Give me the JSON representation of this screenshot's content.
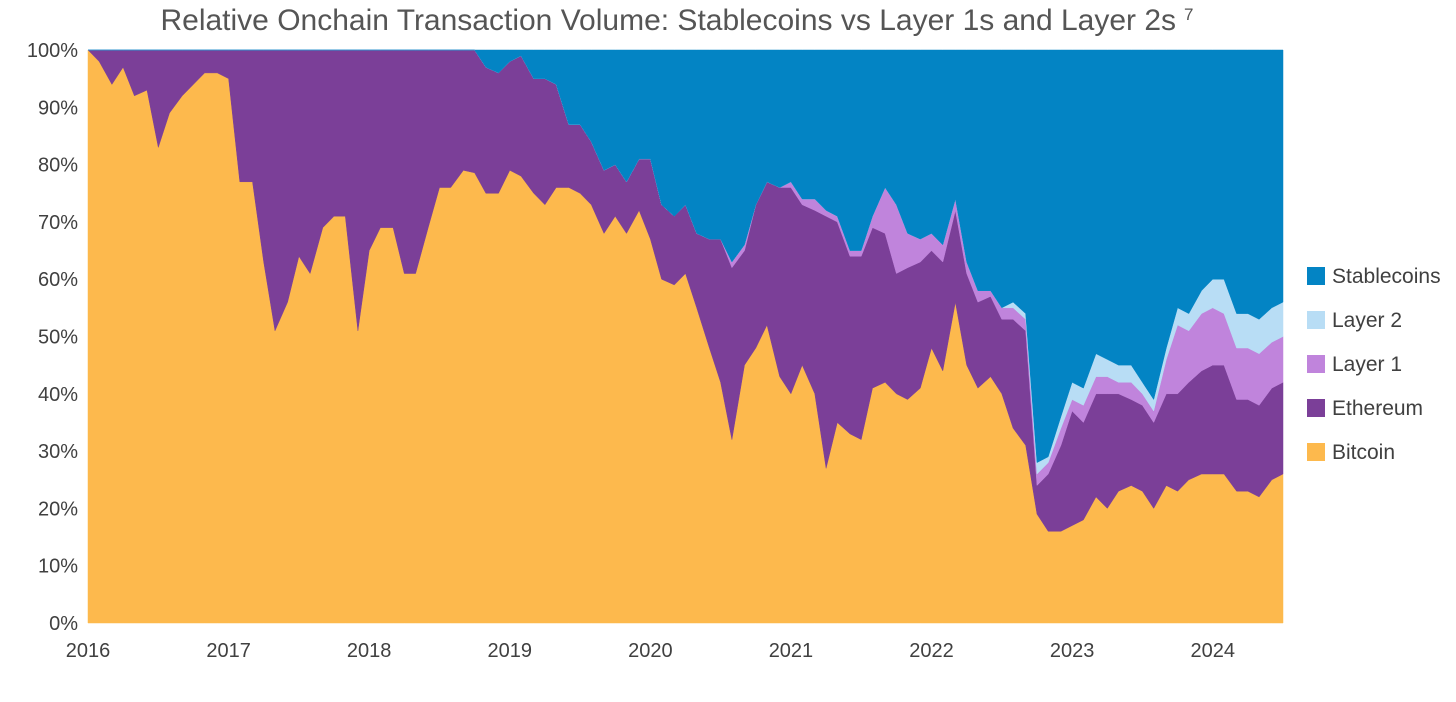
{
  "chart_data": {
    "type": "area",
    "stacking": "percent",
    "title": "Relative Onchain Transaction Volume: Stablecoins vs Layer 1s and Layer 2s",
    "title_superscript": "7",
    "xlabel": "",
    "ylabel": "",
    "x_tick_labels": [
      "2016",
      "2017",
      "2018",
      "2019",
      "2020",
      "2021",
      "2022",
      "2023",
      "2024"
    ],
    "y_tick_labels": [
      "0%",
      "10%",
      "20%",
      "30%",
      "40%",
      "50%",
      "60%",
      "70%",
      "80%",
      "90%",
      "100%"
    ],
    "xlim": [
      2016.0,
      2024.5
    ],
    "ylim": [
      0,
      100
    ],
    "legend_position": "right",
    "grid": false,
    "x": [
      2016.0,
      2016.08,
      2016.17,
      2016.25,
      2016.33,
      2016.42,
      2016.5,
      2016.58,
      2016.67,
      2016.75,
      2016.83,
      2016.92,
      2017.0,
      2017.08,
      2017.17,
      2017.25,
      2017.33,
      2017.42,
      2017.5,
      2017.58,
      2017.67,
      2017.75,
      2017.83,
      2017.92,
      2018.0,
      2018.08,
      2018.17,
      2018.25,
      2018.33,
      2018.42,
      2018.5,
      2018.58,
      2018.67,
      2018.75,
      2018.83,
      2018.92,
      2019.0,
      2019.08,
      2019.17,
      2019.25,
      2019.33,
      2019.42,
      2019.5,
      2019.58,
      2019.67,
      2019.75,
      2019.83,
      2019.92,
      2020.0,
      2020.08,
      2020.17,
      2020.25,
      2020.33,
      2020.42,
      2020.5,
      2020.58,
      2020.67,
      2020.75,
      2020.83,
      2020.92,
      2021.0,
      2021.08,
      2021.17,
      2021.25,
      2021.33,
      2021.42,
      2021.5,
      2021.58,
      2021.67,
      2021.75,
      2021.83,
      2021.92,
      2022.0,
      2022.08,
      2022.17,
      2022.25,
      2022.33,
      2022.42,
      2022.5,
      2022.58,
      2022.67,
      2022.75,
      2022.83,
      2022.92,
      2023.0,
      2023.08,
      2023.17,
      2023.25,
      2023.33,
      2023.42,
      2023.5,
      2023.58,
      2023.67,
      2023.75,
      2023.83,
      2023.92,
      2024.0,
      2024.08,
      2024.17,
      2024.25,
      2024.33,
      2024.42,
      2024.5
    ],
    "series": [
      {
        "name": "Bitcoin",
        "color": "#FDB94D",
        "values": [
          100,
          98,
          94,
          97,
          92,
          93,
          83,
          89,
          92,
          94,
          96,
          96,
          95,
          77,
          77,
          63,
          51,
          56,
          64,
          61,
          69,
          71,
          71,
          51,
          65,
          69,
          69,
          61,
          61,
          69,
          76,
          76,
          79,
          77,
          75,
          75,
          79,
          78,
          75,
          73,
          76,
          76,
          75,
          73,
          68,
          71,
          68,
          72,
          67,
          60,
          59,
          61,
          55,
          48,
          42,
          32,
          45,
          48,
          52,
          43,
          40,
          45,
          40,
          27,
          35,
          33,
          32,
          41,
          42,
          40,
          39,
          41,
          48,
          44,
          56,
          45,
          41,
          43,
          40,
          34,
          31,
          19,
          16,
          16,
          17,
          18,
          22,
          20,
          23,
          24,
          23,
          20,
          24,
          23,
          25,
          26,
          26,
          26,
          23,
          23,
          22,
          25,
          26
        ]
      },
      {
        "name": "Ethereum",
        "color": "#7B3F98",
        "values": [
          0,
          2,
          6,
          3,
          8,
          7,
          17,
          11,
          8,
          6,
          4,
          4,
          5,
          23,
          23,
          37,
          49,
          44,
          36,
          39,
          31,
          29,
          29,
          49,
          35,
          31,
          31,
          39,
          39,
          31,
          24,
          24,
          21,
          21,
          22,
          21,
          19,
          21,
          20,
          22,
          18,
          11,
          12,
          11,
          11,
          9,
          9,
          9,
          14,
          13,
          12,
          12,
          13,
          19,
          25,
          30,
          20,
          25,
          25,
          33,
          36,
          28,
          32,
          44,
          35,
          31,
          32,
          28,
          26,
          21,
          23,
          22,
          17,
          19,
          16,
          16,
          15,
          14,
          13,
          19,
          20,
          5,
          10,
          15,
          20,
          17,
          18,
          20,
          17,
          15,
          15,
          15,
          16,
          17,
          17,
          18,
          19,
          19,
          16,
          16,
          16,
          16,
          16
        ]
      },
      {
        "name": "Layer 1",
        "color": "#C084DC",
        "values": [
          0,
          0,
          0,
          0,
          0,
          0,
          0,
          0,
          0,
          0,
          0,
          0,
          0,
          0,
          0,
          0,
          0,
          0,
          0,
          0,
          0,
          0,
          0,
          0,
          0,
          0,
          0,
          0,
          0,
          0,
          0,
          0,
          0,
          0,
          0,
          0,
          0,
          0,
          0,
          0,
          0,
          0,
          0,
          0,
          0,
          0,
          0,
          0,
          0,
          0,
          0,
          0,
          0,
          0,
          0,
          1,
          1,
          0,
          0,
          0,
          1,
          1,
          2,
          1,
          1,
          1,
          1,
          2,
          8,
          12,
          6,
          4,
          3,
          3,
          2,
          2,
          2,
          1,
          2,
          2,
          2,
          2,
          2,
          3,
          2,
          3,
          3,
          3,
          2,
          3,
          2,
          2,
          6,
          12,
          9,
          10,
          10,
          9,
          9,
          9,
          9,
          8,
          8
        ]
      },
      {
        "name": "Layer 2",
        "color": "#B8DDF5",
        "values": [
          0,
          0,
          0,
          0,
          0,
          0,
          0,
          0,
          0,
          0,
          0,
          0,
          0,
          0,
          0,
          0,
          0,
          0,
          0,
          0,
          0,
          0,
          0,
          0,
          0,
          0,
          0,
          0,
          0,
          0,
          0,
          0,
          0,
          0,
          0,
          0,
          0,
          0,
          0,
          0,
          0,
          0,
          0,
          0,
          0,
          0,
          0,
          0,
          0,
          0,
          0,
          0,
          0,
          0,
          0,
          0,
          0,
          0,
          0,
          0,
          0,
          0,
          0,
          0,
          0,
          0,
          0,
          0,
          0,
          0,
          0,
          0,
          0,
          0,
          0,
          0,
          0,
          0,
          0,
          1,
          1,
          2,
          1,
          2,
          3,
          3,
          4,
          3,
          3,
          3,
          2,
          2,
          2,
          3,
          3,
          4,
          5,
          6,
          6,
          6,
          6,
          6,
          6
        ]
      },
      {
        "name": "Stablecoins",
        "color": "#0384C4",
        "values": [
          0,
          0,
          0,
          0,
          0,
          0,
          0,
          0,
          0,
          0,
          0,
          0,
          0,
          0,
          0,
          0,
          0,
          0,
          0,
          0,
          0,
          0,
          0,
          0,
          0,
          0,
          0,
          0,
          0,
          0,
          0,
          0,
          0,
          0,
          3,
          4,
          2,
          1,
          5,
          5,
          6,
          13,
          13,
          16,
          21,
          20,
          23,
          19,
          19,
          27,
          29,
          27,
          32,
          33,
          33,
          37,
          34,
          27,
          23,
          24,
          23,
          26,
          26,
          28,
          29,
          35,
          35,
          29,
          24,
          27,
          32,
          33,
          32,
          34,
          26,
          37,
          42,
          42,
          45,
          44,
          46,
          72,
          71,
          64,
          58,
          59,
          53,
          54,
          55,
          55,
          58,
          61,
          52,
          45,
          46,
          42,
          40,
          40,
          46,
          46,
          47,
          45,
          44
        ]
      }
    ],
    "legend_order": [
      "Stablecoins",
      "Layer 2",
      "Layer 1",
      "Ethereum",
      "Bitcoin"
    ]
  }
}
